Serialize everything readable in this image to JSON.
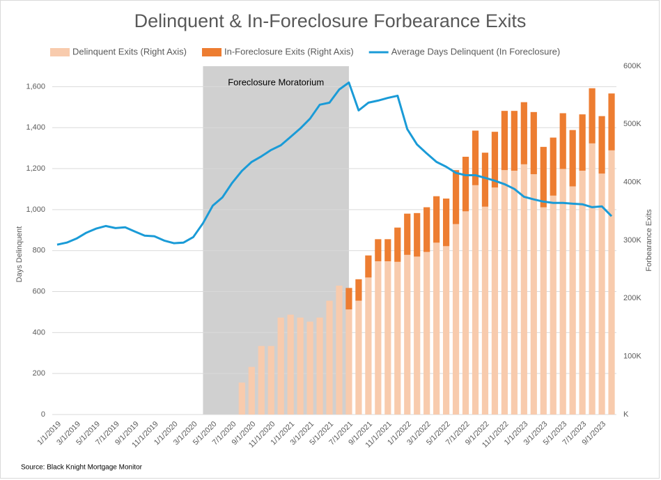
{
  "chart_data": {
    "type": "combo",
    "title": "Delinquent & In-Foreclosure Forbearance Exits",
    "y_label": "Days Delinquent",
    "y2_label": "Forbearance Exits",
    "source": "Source: Black Knight Mortgage Monitor",
    "annotation": "Foreclosure Moratorium",
    "categories": [
      "1/1/2019",
      null,
      "3/1/2019",
      null,
      "5/1/2019",
      null,
      "7/1/2019",
      null,
      "9/1/2019",
      null,
      "11/1/2019",
      null,
      "1/1/2020",
      null,
      "3/1/2020",
      null,
      "5/1/2020",
      null,
      "7/1/2020",
      null,
      "9/1/2020",
      null,
      "11/1/2020",
      null,
      "1/1/2021",
      null,
      "3/1/2021",
      null,
      "5/1/2021",
      null,
      "7/1/2021",
      null,
      "9/1/2021",
      null,
      "11/1/2021",
      null,
      "1/1/2022",
      null,
      "3/1/2022",
      null,
      "5/1/2022",
      null,
      "7/1/2022",
      null,
      "9/1/2022",
      null,
      "11/1/2022",
      null,
      "1/1/2023",
      null,
      "3/1/2023",
      null,
      "5/1/2023",
      null,
      "7/1/2023",
      null,
      "9/1/2023",
      null
    ],
    "series": [
      {
        "name": "Delinquent Exits (Right Axis)",
        "type": "bar",
        "axis": "y2",
        "color": "#f8cbad",
        "values": [
          null,
          null,
          null,
          null,
          null,
          null,
          null,
          null,
          null,
          null,
          null,
          null,
          null,
          null,
          null,
          null,
          null,
          null,
          null,
          55000,
          82000,
          118000,
          118000,
          167000,
          172000,
          167000,
          160000,
          167000,
          196000,
          222000,
          181000,
          196000,
          236000,
          264000,
          264000,
          263000,
          275000,
          272000,
          280000,
          296000,
          290000,
          328000,
          350000,
          395000,
          358000,
          391000,
          421000,
          420000,
          431000,
          414000,
          357000,
          377000,
          423000,
          393000,
          420000,
          467000,
          415000,
          455000
        ]
      },
      {
        "name": "In-Foreclosure Exits (Right Axis)",
        "type": "bar",
        "axis": "y2",
        "color": "#ed7d31",
        "values": [
          null,
          null,
          null,
          null,
          null,
          null,
          null,
          null,
          null,
          null,
          null,
          null,
          null,
          null,
          null,
          null,
          null,
          null,
          null,
          null,
          null,
          null,
          null,
          null,
          null,
          null,
          null,
          null,
          null,
          null,
          37000,
          37000,
          38000,
          38000,
          38000,
          59000,
          71000,
          75000,
          77000,
          80000,
          82000,
          93000,
          94000,
          94000,
          93000,
          96000,
          102000,
          103000,
          107000,
          107000,
          104000,
          100000,
          96000,
          97000,
          97000,
          95000,
          99000,
          98000
        ]
      },
      {
        "name": "Average Days Delinquent (In Foreclosure)",
        "type": "line",
        "axis": "y",
        "color": "#1a9bd7",
        "values": [
          829,
          839,
          859,
          887,
          907,
          920,
          910,
          914,
          893,
          873,
          870,
          849,
          836,
          839,
          866,
          934,
          1019,
          1060,
          1131,
          1189,
          1233,
          1260,
          1291,
          1314,
          1355,
          1396,
          1444,
          1512,
          1522,
          1586,
          1620,
          1484,
          1522,
          1532,
          1545,
          1556,
          1393,
          1318,
          1274,
          1233,
          1209,
          1179,
          1168,
          1168,
          1155,
          1141,
          1124,
          1101,
          1063,
          1050,
          1039,
          1033,
          1033,
          1029,
          1026,
          1012,
          1016,
          968
        ]
      }
    ],
    "ylim": [
      0,
      1700
    ],
    "yticks": [
      0,
      200,
      400,
      600,
      800,
      {
        "value": 1000,
        "label": "1,000"
      },
      {
        "value": 1200,
        "label": "1,200"
      },
      {
        "value": 1400,
        "label": "1,400"
      },
      {
        "value": 1600,
        "label": "1,600"
      }
    ],
    "y2lim": [
      0,
      600000
    ],
    "y2ticks": [
      {
        "value": 0,
        "label": "K"
      },
      {
        "value": 100000,
        "label": "100K"
      },
      {
        "value": 200000,
        "label": "200K"
      },
      {
        "value": 300000,
        "label": "300K"
      },
      {
        "value": 400000,
        "label": "400K"
      },
      {
        "value": 500000,
        "label": "500K"
      },
      {
        "value": 600000,
        "label": "600K"
      }
    ],
    "grid": true,
    "legend": "top"
  }
}
